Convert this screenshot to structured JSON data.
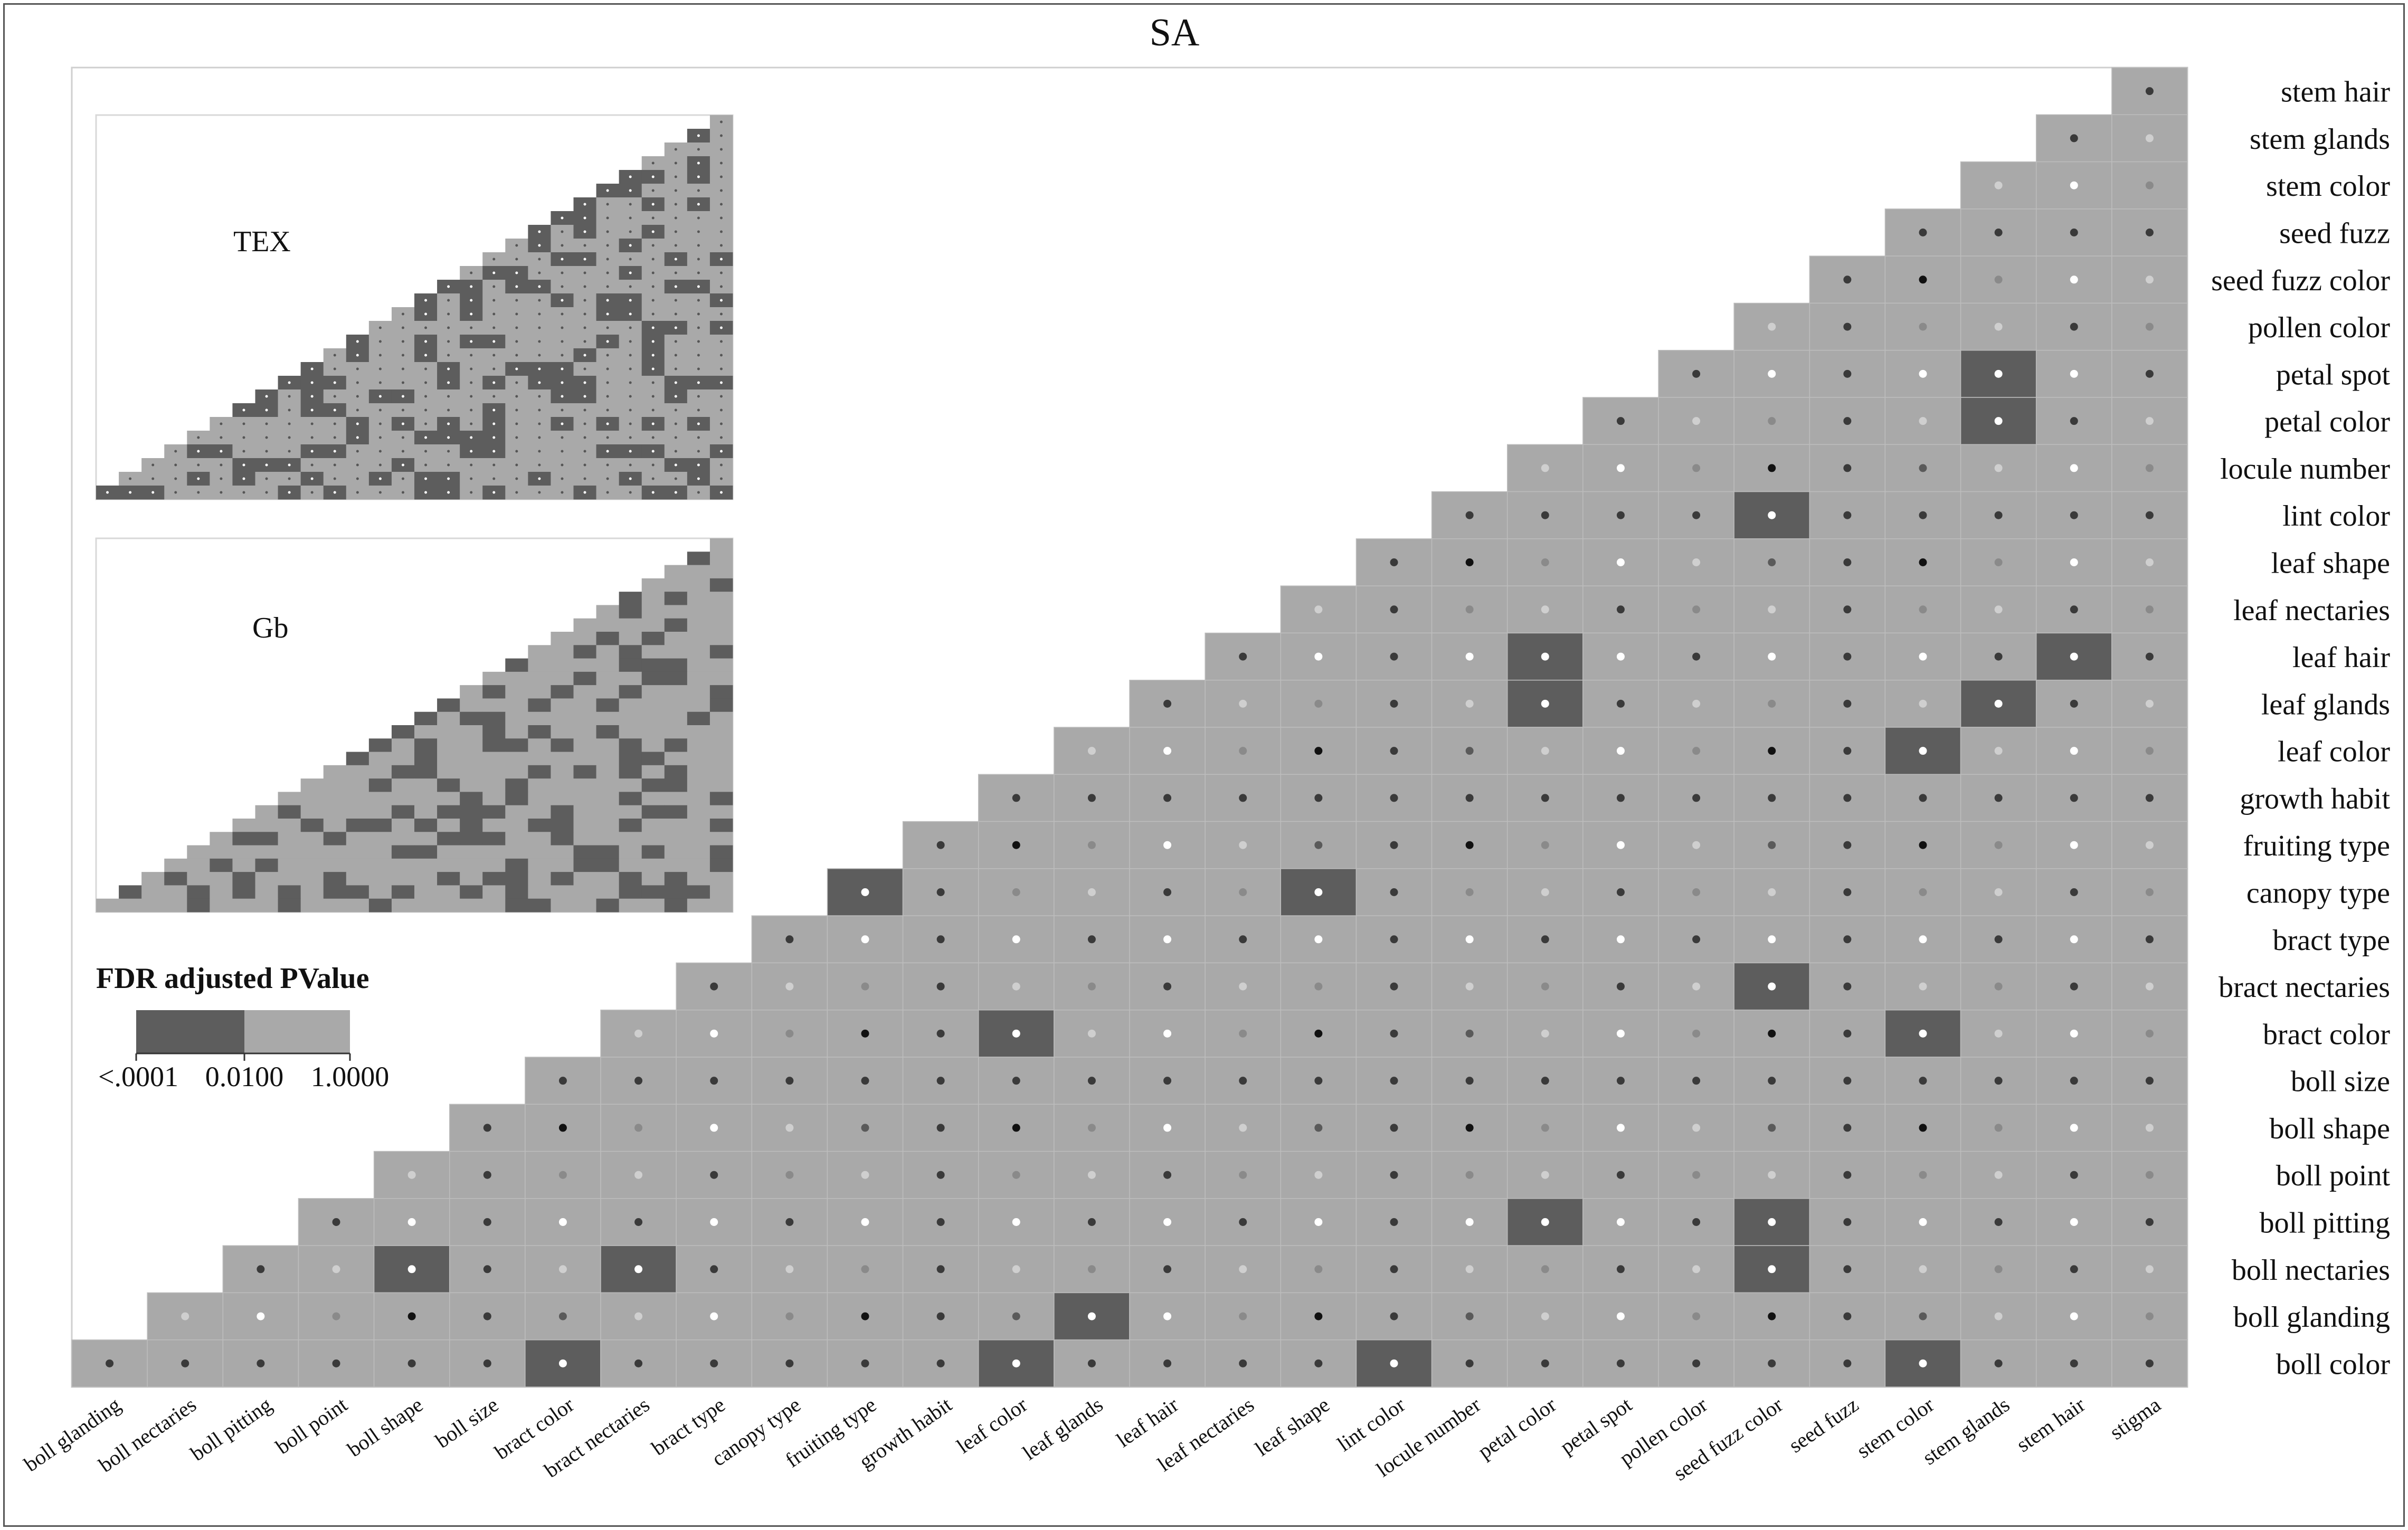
{
  "chart_data": [
    {
      "type": "heatmap",
      "title": "SA",
      "columns": [
        "boll glanding",
        "boll nectaries",
        "boll pitting",
        "boll point",
        "boll shape",
        "boll size",
        "bract color",
        "bract nectaries",
        "bract type",
        "canopy type",
        "fruiting type",
        "growth habit",
        "leaf color",
        "leaf glands",
        "leaf hair",
        "leaf nectaries",
        "leaf shape",
        "lint color",
        "locule number",
        "petal color",
        "petal spot",
        "pollen color",
        "seed fuzz color",
        "seed fuzz",
        "stem color",
        "stem glands",
        "stem hair",
        "stigma"
      ],
      "rows": [
        "stem hair",
        "stem glands",
        "stem color",
        "seed fuzz",
        "seed fuzz color",
        "pollen color",
        "petal spot",
        "petal color",
        "locule number",
        "lint color",
        "leaf shape",
        "leaf nectaries",
        "leaf hair",
        "leaf glands",
        "leaf color",
        "growth habit",
        "fruiting type",
        "canopy type",
        "bract type",
        "bract nectaries",
        "bract color",
        "boll size",
        "boll shape",
        "boll point",
        "boll pitting",
        "boll nectaries",
        "boll glanding",
        "boll color"
      ],
      "significant_cells": [
        [
          "petal spot",
          "stem glands"
        ],
        [
          "petal color",
          "stem glands"
        ],
        [
          "lint color",
          "seed fuzz color"
        ],
        [
          "leaf hair",
          "petal color"
        ],
        [
          "leaf hair",
          "stem hair"
        ],
        [
          "leaf glands",
          "petal color"
        ],
        [
          "leaf glands",
          "stem glands"
        ],
        [
          "leaf color",
          "stem color"
        ],
        [
          "canopy type",
          "fruiting type"
        ],
        [
          "canopy type",
          "leaf shape"
        ],
        [
          "bract nectaries",
          "seed fuzz color"
        ],
        [
          "bract color",
          "leaf color"
        ],
        [
          "bract color",
          "stem color"
        ],
        [
          "boll pitting",
          "petal color"
        ],
        [
          "boll pitting",
          "seed fuzz color"
        ],
        [
          "boll nectaries",
          "boll shape"
        ],
        [
          "boll nectaries",
          "bract nectaries"
        ],
        [
          "boll nectaries",
          "seed fuzz color"
        ],
        [
          "boll glanding",
          "leaf glands"
        ],
        [
          "boll color",
          "bract color"
        ],
        [
          "boll color",
          "leaf color"
        ],
        [
          "boll color",
          "lint color"
        ],
        [
          "boll color",
          "stem color"
        ]
      ]
    },
    {
      "type": "heatmap",
      "title": "TEX"
    },
    {
      "type": "heatmap",
      "title": "Gb"
    }
  ],
  "legend": {
    "title": "FDR adjusted PValue",
    "ticks": [
      "<.0001",
      "0.0100",
      "1.0000"
    ],
    "colors": {
      "significant": "#5d5d5d",
      "nonsignificant": "#a9a9a9"
    }
  }
}
